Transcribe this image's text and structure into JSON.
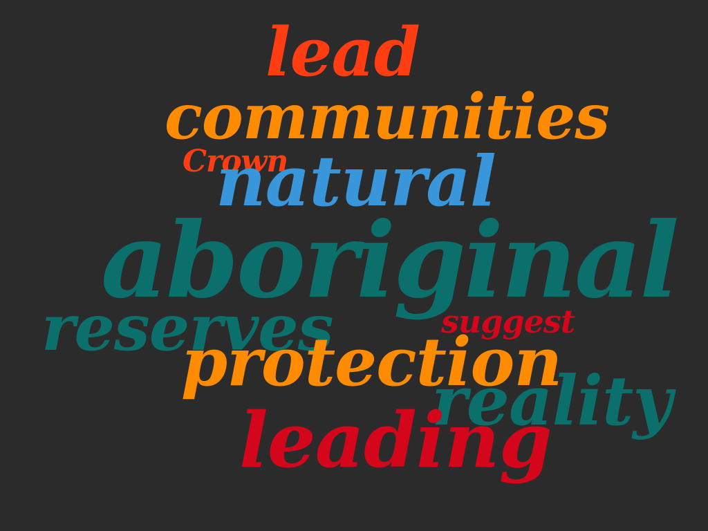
{
  "words": {
    "lead": {
      "text": "lead",
      "color": "#ff3d13"
    },
    "communities": {
      "text": "communities",
      "color": "#ff8c00"
    },
    "crown": {
      "text": "Crown",
      "color": "#ff3d13"
    },
    "natural": {
      "text": "natural",
      "color": "#3a96db"
    },
    "aboriginal": {
      "text": "aboriginal",
      "color": "#0b6f6c"
    },
    "reserves": {
      "text": "reserves",
      "color": "#0b6f6c"
    },
    "suggest": {
      "text": "suggest",
      "color": "#d3061c"
    },
    "protection": {
      "text": "protection",
      "color": "#ff8c00"
    },
    "reality": {
      "text": "reality",
      "color": "#0b6f6c"
    },
    "leading": {
      "text": "leading",
      "color": "#d3061c"
    }
  }
}
